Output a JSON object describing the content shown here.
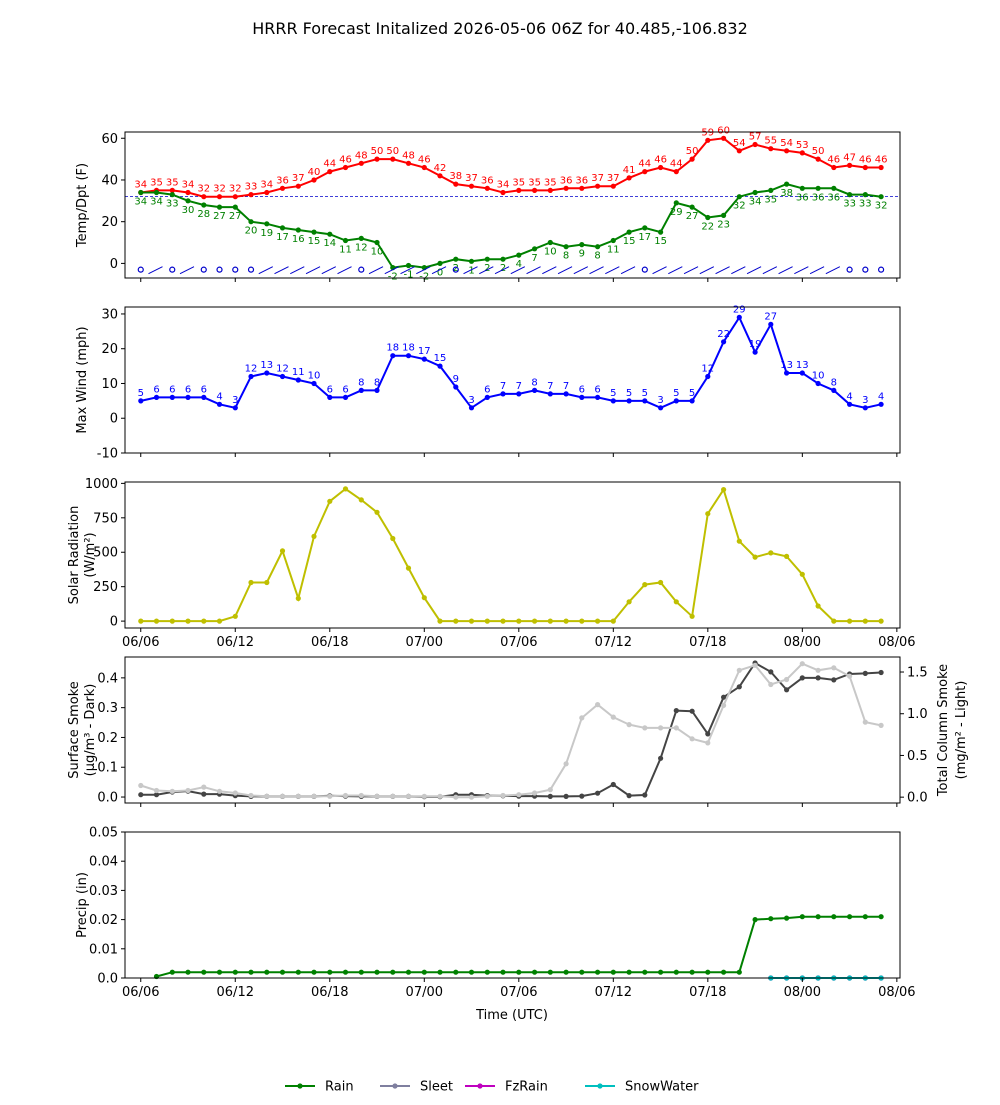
{
  "chart_data": {
    "title": "HRRR Forecast Initalized 2026-05-06 06Z for 40.485,-106.832",
    "xlabel": "Time (UTC)",
    "x_ticks": [
      "06/06",
      "06/12",
      "06/18",
      "07/00",
      "07/06",
      "07/12",
      "07/18",
      "08/00",
      "08/06"
    ],
    "x_hours": [
      0,
      1,
      2,
      3,
      4,
      5,
      6,
      7,
      8,
      9,
      10,
      11,
      12,
      13,
      14,
      15,
      16,
      17,
      18,
      19,
      20,
      21,
      22,
      23,
      24,
      25,
      26,
      27,
      28,
      29,
      30,
      31,
      32,
      33,
      34,
      35,
      36,
      37,
      38,
      39,
      40,
      41,
      42,
      43,
      44,
      45,
      46,
      47,
      48
    ],
    "panels": [
      {
        "type": "line",
        "ylabel": "Temp/Dpt (F)",
        "ylim": [
          -7,
          63
        ],
        "yticks": [
          0,
          20,
          40,
          60
        ],
        "freezing_line": 32,
        "series": [
          {
            "color": "#ff0000",
            "labels": true,
            "values": [
              34,
              35,
              35,
              34,
              32,
              32,
              32,
              33,
              34,
              36,
              37,
              40,
              44,
              46,
              48,
              50,
              50,
              48,
              46,
              42,
              38,
              37,
              36,
              34,
              35,
              35,
              35,
              36,
              36,
              37,
              37,
              41,
              44,
              46,
              44,
              50,
              59,
              60,
              54,
              57,
              55,
              54,
              53,
              50,
              46,
              47,
              46,
              46
            ]
          },
          {
            "color": "#008000",
            "labels": true,
            "values": [
              34,
              34,
              33,
              30,
              28,
              27,
              27,
              20,
              19,
              17,
              16,
              15,
              14,
              11,
              12,
              10,
              -2,
              -1,
              -2,
              0,
              2,
              1,
              2,
              2,
              4,
              7,
              10,
              8,
              9,
              8,
              11,
              15,
              17,
              15,
              29,
              27,
              22,
              23,
              32,
              34,
              35,
              38,
              36,
              36,
              36,
              33,
              33,
              32
            ]
          }
        ],
        "barbs": [
          0,
          1,
          0,
          1,
          0,
          0,
          0,
          0,
          1,
          1,
          1,
          1,
          1,
          1,
          0,
          1,
          1,
          1,
          1,
          1,
          0,
          1,
          1,
          1,
          1,
          1,
          1,
          1,
          1,
          1,
          1,
          1,
          0,
          1,
          1,
          1,
          1,
          1,
          1,
          1,
          1,
          1,
          1,
          1,
          1,
          0,
          0,
          0
        ]
      },
      {
        "type": "line",
        "ylabel": "Max Wind (mph)",
        "ylim": [
          -10,
          32
        ],
        "yticks": [
          -10,
          0,
          10,
          20,
          30
        ],
        "series": [
          {
            "color": "#0000ff",
            "labels": true,
            "values": [
              5,
              6,
              6,
              6,
              6,
              4,
              3,
              12,
              13,
              12,
              11,
              10,
              6,
              6,
              8,
              8,
              18,
              18,
              17,
              15,
              9,
              3,
              6,
              7,
              7,
              8,
              7,
              7,
              6,
              6,
              5,
              5,
              5,
              3,
              5,
              5,
              12,
              22,
              29,
              19,
              27,
              13,
              13,
              10,
              8,
              4,
              3,
              4
            ]
          }
        ]
      },
      {
        "type": "line",
        "ylabel": "Solar Radiation",
        "ylabel2": "(W/m²)",
        "ylim": [
          -50,
          1010
        ],
        "yticks": [
          0,
          250,
          500,
          750,
          1000
        ],
        "series": [
          {
            "color": "#bfbf00",
            "labels": false,
            "values": [
              0,
              0,
              0,
              0,
              0,
              0,
              35,
              280,
              280,
              510,
              165,
              615,
              870,
              960,
              880,
              790,
              600,
              385,
              170,
              0,
              0,
              0,
              0,
              0,
              0,
              0,
              0,
              0,
              0,
              0,
              0,
              140,
              265,
              280,
              140,
              35,
              780,
              955,
              580,
              465,
              495,
              470,
              340,
              110,
              0,
              0,
              0,
              0
            ]
          }
        ]
      },
      {
        "type": "line",
        "ylabel": "Surface Smoke",
        "ylabel2": "(µg/m³ - Dark)",
        "ylabel_right": "Total Column Smoke",
        "ylabel_right2": "(mg/m² - Light)",
        "ylim": [
          -0.02,
          0.47
        ],
        "yticks": [
          0.0,
          0.1,
          0.2,
          0.3,
          0.4
        ],
        "ylim_right": [
          -0.07,
          1.68
        ],
        "yticks_right": [
          0.0,
          0.5,
          1.0,
          1.5
        ],
        "series": [
          {
            "name": "Surface Smoke",
            "axis": "left",
            "color": "#444444",
            "labels": false,
            "values": [
              0.008,
              0.008,
              0.017,
              0.02,
              0.01,
              0.01,
              0.005,
              0.002,
              0.002,
              0.002,
              0.002,
              0.002,
              0.004,
              0.003,
              0.002,
              0.002,
              0.002,
              0.002,
              0.001,
              0.001,
              0.008,
              0.008,
              0.005,
              0.004,
              0.003,
              0.003,
              0.002,
              0.002,
              0.003,
              0.013,
              0.042,
              0.005,
              0.007,
              0.13,
              0.29,
              0.288,
              0.212,
              0.335,
              0.37,
              0.45,
              0.42,
              0.36,
              0.4,
              0.4,
              0.393,
              0.413,
              0.415,
              0.418
            ]
          },
          {
            "name": "Total Column Smoke",
            "axis": "right",
            "color": "#c8c8c8",
            "labels": false,
            "values": [
              0.14,
              0.08,
              0.07,
              0.08,
              0.12,
              0.07,
              0.05,
              0.02,
              0.01,
              0.01,
              0.01,
              0.01,
              0.01,
              0.02,
              0.02,
              0.01,
              0.01,
              0.01,
              0.01,
              0.01,
              0.0,
              0.0,
              0.01,
              0.02,
              0.03,
              0.05,
              0.09,
              0.4,
              0.95,
              1.11,
              0.96,
              0.87,
              0.83,
              0.83,
              0.83,
              0.7,
              0.65,
              1.1,
              1.52,
              1.58,
              1.35,
              1.41,
              1.6,
              1.52,
              1.55,
              1.45,
              0.9,
              0.86
            ]
          }
        ]
      },
      {
        "type": "line",
        "ylabel": "Precip (in)",
        "ylim": [
          0,
          0.05
        ],
        "yticks": [
          0.0,
          0.01,
          0.02,
          0.03,
          0.04,
          0.05
        ],
        "series": [
          {
            "name": "Rain",
            "color": "#008000",
            "labels": false,
            "start": 1,
            "values": [
              0.0005,
              0.002,
              0.002,
              0.002,
              0.002,
              0.002,
              0.002,
              0.002,
              0.002,
              0.002,
              0.002,
              0.002,
              0.002,
              0.002,
              0.002,
              0.002,
              0.002,
              0.002,
              0.002,
              0.002,
              0.002,
              0.002,
              0.002,
              0.002,
              0.002,
              0.002,
              0.002,
              0.002,
              0.002,
              0.002,
              0.002,
              0.002,
              0.002,
              0.002,
              0.002,
              0.002,
              0.002,
              0.002,
              0.02,
              0.0203,
              0.0205,
              0.021,
              0.021,
              0.021,
              0.021,
              0.021,
              0.021
            ]
          },
          {
            "name": "Sleet",
            "color": "#7f7f9f",
            "labels": false,
            "start": 40,
            "values": [
              0,
              0,
              0,
              0,
              0,
              0,
              0,
              0
            ]
          },
          {
            "name": "FzRain",
            "color": "#bf00bf",
            "labels": false,
            "start": 40,
            "values": [
              0,
              0,
              0,
              0,
              0,
              0,
              0,
              0
            ]
          },
          {
            "name": "SnowWater",
            "color": "#00bfbf",
            "labels": false,
            "start": 40,
            "values": [
              0,
              0,
              0,
              0,
              0,
              0,
              0,
              0
            ]
          }
        ]
      }
    ],
    "legend": [
      {
        "name": "Rain",
        "color": "#008000"
      },
      {
        "name": "Sleet",
        "color": "#7f7f9f"
      },
      {
        "name": "FzRain",
        "color": "#bf00bf"
      },
      {
        "name": "SnowWater",
        "color": "#00bfbf"
      }
    ],
    "legend_placement": "bottom-center",
    "grid": false
  }
}
